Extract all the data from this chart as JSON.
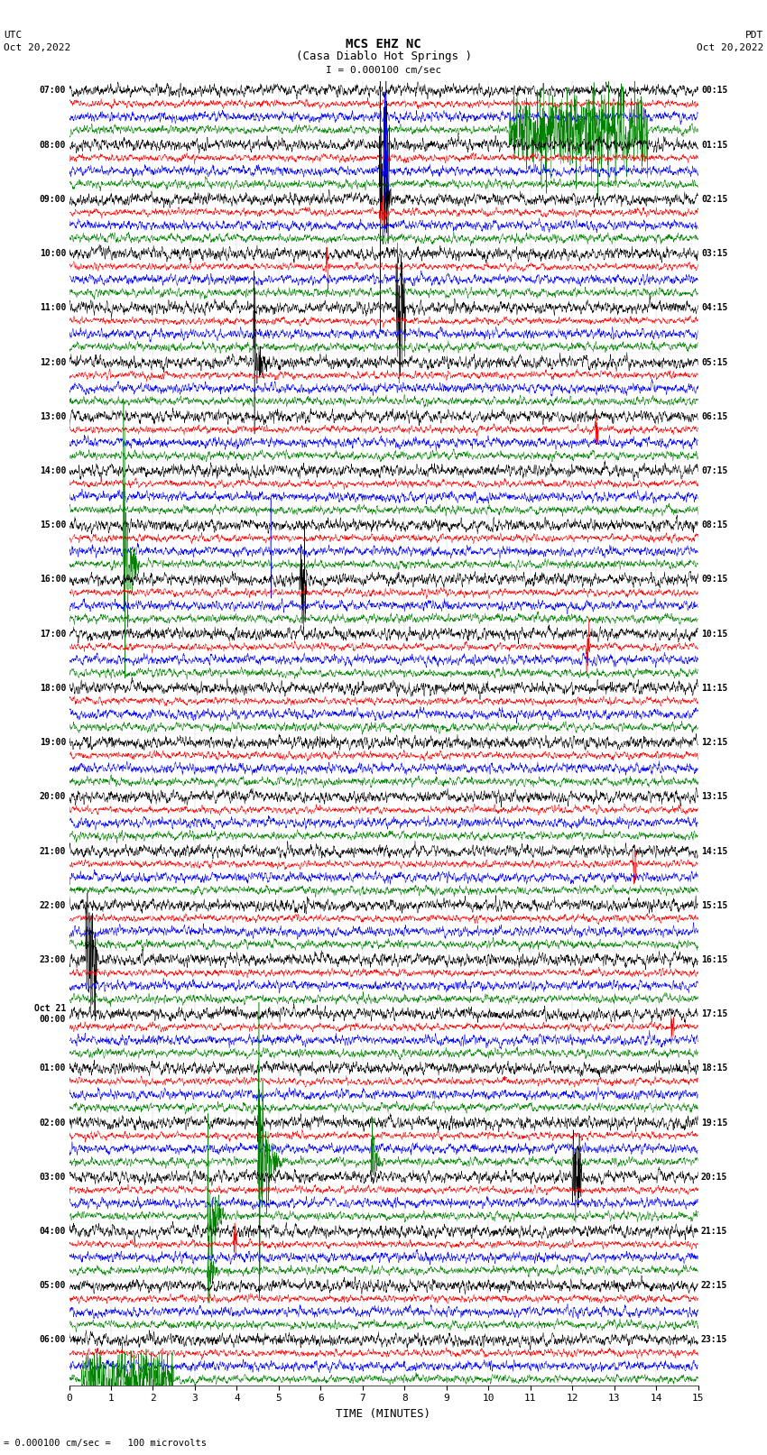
{
  "title_line1": "MCS EHZ NC",
  "title_line2": "(Casa Diablo Hot Springs )",
  "scale_label": "I = 0.000100 cm/sec",
  "bottom_label": "= 0.000100 cm/sec =   100 microvolts",
  "utc_label": "UTC",
  "utc_date": "Oct 20,2022",
  "pdt_label": "PDT",
  "pdt_date": "Oct 20,2022",
  "xlabel": "TIME (MINUTES)",
  "left_times": [
    "07:00",
    "08:00",
    "09:00",
    "10:00",
    "11:00",
    "12:00",
    "13:00",
    "14:00",
    "15:00",
    "16:00",
    "17:00",
    "18:00",
    "19:00",
    "20:00",
    "21:00",
    "22:00",
    "23:00",
    "Oct 21\n00:00",
    "01:00",
    "02:00",
    "03:00",
    "04:00",
    "05:00",
    "06:00"
  ],
  "right_times": [
    "00:15",
    "01:15",
    "02:15",
    "03:15",
    "04:15",
    "05:15",
    "06:15",
    "07:15",
    "08:15",
    "09:15",
    "10:15",
    "11:15",
    "12:15",
    "13:15",
    "14:15",
    "15:15",
    "16:15",
    "17:15",
    "18:15",
    "19:15",
    "20:15",
    "21:15",
    "22:15",
    "23:15"
  ],
  "n_rows": 24,
  "traces_per_row": 4,
  "colors": [
    "black",
    "red",
    "blue",
    "green"
  ],
  "noise_amps": [
    1.0,
    0.6,
    0.8,
    0.7
  ],
  "bg_color": "white",
  "fig_width": 8.5,
  "fig_height": 16.13,
  "dpi": 100
}
